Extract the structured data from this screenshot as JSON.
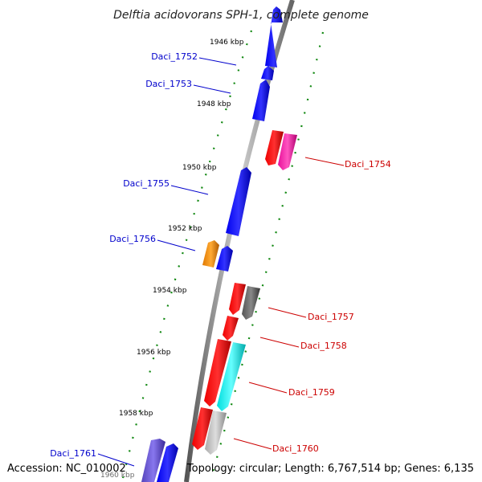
{
  "title": "Delftia acidovorans SPH-1, complete genome",
  "footer": {
    "accession": "Accession: NC_010002",
    "topology": "Topology: circular; Length: 6,767,514 bp; Genes: 6,135"
  },
  "ticks": [
    "1946 kbp",
    "1948 kbp",
    "1950 kbp",
    "1952 kbp",
    "1954 kbp",
    "1956 kbp",
    "1958 kbp",
    "1960 kbp"
  ],
  "genes": [
    {
      "name": "Daci_1752",
      "strand": "reverse",
      "color": "#0000cc"
    },
    {
      "name": "Daci_1753",
      "strand": "reverse",
      "color": "#0000cc"
    },
    {
      "name": "Daci_1754",
      "strand": "forward",
      "color": "#cc0000"
    },
    {
      "name": "Daci_1755",
      "strand": "reverse",
      "color": "#0000cc"
    },
    {
      "name": "Daci_1756",
      "strand": "reverse",
      "color": "#0000cc"
    },
    {
      "name": "Daci_1757",
      "strand": "forward",
      "color": "#cc0000"
    },
    {
      "name": "Daci_1758",
      "strand": "forward",
      "color": "#cc0000"
    },
    {
      "name": "Daci_1759",
      "strand": "forward",
      "color": "#cc0000"
    },
    {
      "name": "Daci_1760",
      "strand": "forward",
      "color": "#cc0000"
    },
    {
      "name": "Daci_1761",
      "strand": "reverse",
      "color": "#0000cc"
    }
  ]
}
